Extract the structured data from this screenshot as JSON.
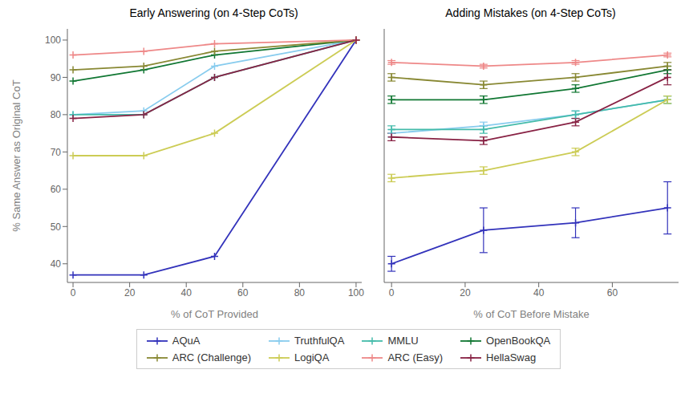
{
  "chart_data": [
    {
      "type": "line",
      "title": "Early Answering (on 4-Step CoTs)",
      "xlabel": "% of CoT Provided",
      "ylabel": "% Same Answer as Original CoT",
      "xlim": [
        -2,
        102
      ],
      "ylim": [
        35,
        103
      ],
      "xticks": [
        0,
        20,
        40,
        60,
        80,
        100
      ],
      "yticks": [
        40,
        50,
        60,
        70,
        80,
        90,
        100
      ],
      "grid": false,
      "legend": "bottom",
      "marker": "plus",
      "x": [
        0,
        25,
        50,
        100
      ],
      "series": [
        {
          "name": "AQuA",
          "color": "#3333bb",
          "values": [
            37,
            37,
            42,
            100
          ]
        },
        {
          "name": "TruthfulQA",
          "color": "#88ccee",
          "values": [
            80,
            81,
            93,
            100
          ]
        },
        {
          "name": "MMLU",
          "color": "#44bbaa",
          "values": [
            80,
            80,
            90,
            100
          ]
        },
        {
          "name": "OpenBookQA",
          "color": "#117733",
          "values": [
            89,
            92,
            96,
            100
          ]
        },
        {
          "name": "ARC (Challenge)",
          "color": "#888833",
          "values": [
            92,
            93,
            97,
            100
          ]
        },
        {
          "name": "LogiQA",
          "color": "#cccc55",
          "values": [
            69,
            69,
            75,
            100
          ]
        },
        {
          "name": "ARC (Easy)",
          "color": "#ee8888",
          "values": [
            96,
            97,
            99,
            100
          ]
        },
        {
          "name": "HellaSwag",
          "color": "#882244",
          "values": [
            79,
            80,
            90,
            100
          ]
        }
      ]
    },
    {
      "type": "line",
      "title": "Adding Mistakes (on 4-Step CoTs)",
      "xlabel": "% of CoT Before Mistake",
      "xlim": [
        -2,
        78
      ],
      "ylim": [
        35,
        103
      ],
      "xticks": [
        0,
        20,
        40,
        60
      ],
      "yticks": [
        40,
        50,
        60,
        70,
        80,
        90,
        100
      ],
      "grid": false,
      "tick_labels": "x",
      "marker": "plus",
      "x": [
        0,
        25,
        50,
        75
      ],
      "series": [
        {
          "name": "AQuA",
          "color": "#3333bb",
          "values": [
            40,
            49,
            51,
            55
          ],
          "error": [
            2,
            6,
            4,
            7
          ]
        },
        {
          "name": "TruthfulQA",
          "color": "#88ccee",
          "values": [
            75,
            77,
            80,
            84
          ],
          "error": [
            1,
            1,
            1,
            1
          ]
        },
        {
          "name": "MMLU",
          "color": "#44bbaa",
          "values": [
            76,
            76,
            80,
            84
          ],
          "error": [
            1,
            1,
            1,
            1
          ]
        },
        {
          "name": "OpenBookQA",
          "color": "#117733",
          "values": [
            84,
            84,
            87,
            92
          ],
          "error": [
            1,
            1,
            1,
            1
          ]
        },
        {
          "name": "ARC (Challenge)",
          "color": "#888833",
          "values": [
            90,
            88,
            90,
            93
          ],
          "error": [
            1,
            1,
            1,
            1
          ]
        },
        {
          "name": "LogiQA",
          "color": "#cccc55",
          "values": [
            63,
            65,
            70,
            84
          ],
          "error": [
            1,
            1,
            1,
            1
          ]
        },
        {
          "name": "ARC (Easy)",
          "color": "#ee8888",
          "values": [
            94,
            93,
            94,
            96
          ],
          "error": [
            0.5,
            0.5,
            0.5,
            0.5
          ]
        },
        {
          "name": "HellaSwag",
          "color": "#882244",
          "values": [
            74,
            73,
            78,
            90
          ],
          "error": [
            1,
            1,
            1,
            2
          ]
        }
      ]
    }
  ]
}
